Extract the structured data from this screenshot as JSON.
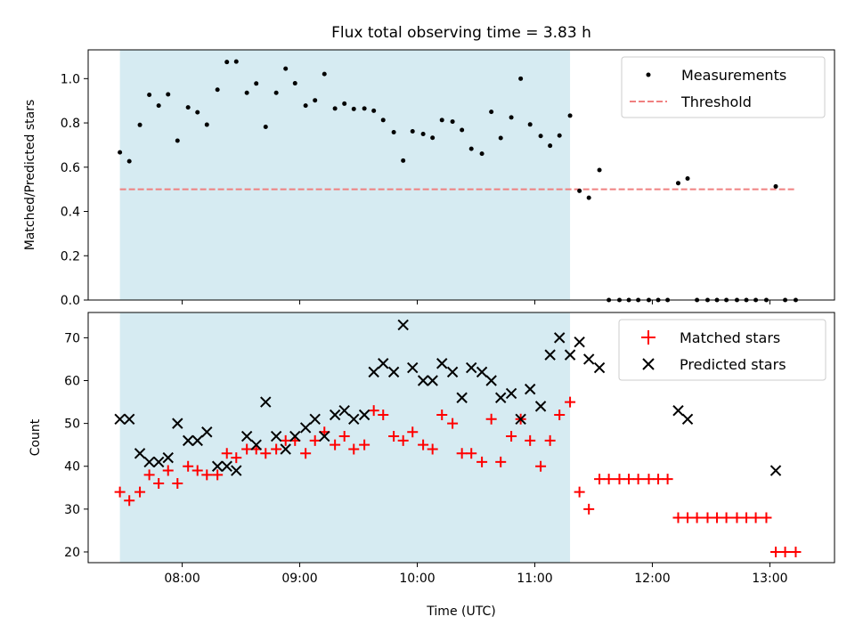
{
  "chart_data": [
    {
      "type": "scatter",
      "title": "Flux total observing time = 3.83 h",
      "xlabel": "",
      "ylabel": "Matched/Predicted stars",
      "x_unit": "hours UTC",
      "xlim": [
        7.2,
        13.55
      ],
      "ylim": [
        0.0,
        1.13
      ],
      "yticks": [
        0.0,
        0.2,
        0.4,
        0.6,
        0.8,
        1.0
      ],
      "ytick_labels": [
        "0.0",
        "0.2",
        "0.4",
        "0.6",
        "0.8",
        "1.0"
      ],
      "shaded_span": {
        "from": 7.47,
        "to": 11.3,
        "color": "#add8e6"
      },
      "legend_position": "top-right",
      "series": [
        {
          "name": "Measurements",
          "style": "dot",
          "color": "#000000",
          "points": [
            [
              7.47,
              0.667
            ],
            [
              7.55,
              0.627
            ],
            [
              7.64,
              0.791
            ],
            [
              7.72,
              0.927
            ],
            [
              7.8,
              0.878
            ],
            [
              7.88,
              0.929
            ],
            [
              7.96,
              0.72
            ],
            [
              8.05,
              0.87
            ],
            [
              8.13,
              0.848
            ],
            [
              8.21,
              0.792
            ],
            [
              8.3,
              0.95
            ],
            [
              8.38,
              1.075
            ],
            [
              8.46,
              1.077
            ],
            [
              8.55,
              0.936
            ],
            [
              8.63,
              0.978
            ],
            [
              8.71,
              0.782
            ],
            [
              8.8,
              0.936
            ],
            [
              8.88,
              1.045
            ],
            [
              8.96,
              0.979
            ],
            [
              9.05,
              0.878
            ],
            [
              9.13,
              0.902
            ],
            [
              9.21,
              1.021
            ],
            [
              9.3,
              0.865
            ],
            [
              9.38,
              0.887
            ],
            [
              9.46,
              0.863
            ],
            [
              9.55,
              0.865
            ],
            [
              9.63,
              0.855
            ],
            [
              9.71,
              0.813
            ],
            [
              9.8,
              0.758
            ],
            [
              9.88,
              0.63
            ],
            [
              9.96,
              0.762
            ],
            [
              10.05,
              0.75
            ],
            [
              10.13,
              0.733
            ],
            [
              10.21,
              0.813
            ],
            [
              10.3,
              0.806
            ],
            [
              10.38,
              0.768
            ],
            [
              10.46,
              0.683
            ],
            [
              10.55,
              0.661
            ],
            [
              10.63,
              0.85
            ],
            [
              10.71,
              0.732
            ],
            [
              10.8,
              0.825
            ],
            [
              10.88,
              1.0
            ],
            [
              10.96,
              0.793
            ],
            [
              11.05,
              0.741
            ],
            [
              11.13,
              0.697
            ],
            [
              11.21,
              0.743
            ],
            [
              11.3,
              0.833
            ],
            [
              11.38,
              0.493
            ],
            [
              11.46,
              0.462
            ],
            [
              11.55,
              0.587
            ],
            [
              11.63,
              0.0
            ],
            [
              11.72,
              0.0
            ],
            [
              11.8,
              0.0
            ],
            [
              11.88,
              0.0
            ],
            [
              11.97,
              0.0
            ],
            [
              12.05,
              0.0
            ],
            [
              12.13,
              0.0
            ],
            [
              12.22,
              0.528
            ],
            [
              12.3,
              0.549
            ],
            [
              12.38,
              0.0
            ],
            [
              12.47,
              0.0
            ],
            [
              12.55,
              0.0
            ],
            [
              12.63,
              0.0
            ],
            [
              12.72,
              0.0
            ],
            [
              12.8,
              0.0
            ],
            [
              12.88,
              0.0
            ],
            [
              12.97,
              0.0
            ],
            [
              13.05,
              0.513
            ],
            [
              13.13,
              0.0
            ],
            [
              13.22,
              0.0
            ]
          ]
        },
        {
          "name": "Threshold",
          "style": "dashed-line",
          "color": "#f08080",
          "points": [
            [
              7.47,
              0.5
            ],
            [
              13.22,
              0.5
            ]
          ]
        }
      ]
    },
    {
      "type": "scatter",
      "title": "",
      "xlabel": "Time (UTC)",
      "ylabel": "Count",
      "x_unit": "hours UTC",
      "xlim": [
        7.2,
        13.55
      ],
      "ylim": [
        17.5,
        75.9
      ],
      "xticks": [
        8,
        9,
        10,
        11,
        12,
        13
      ],
      "xtick_labels": [
        "08:00",
        "09:00",
        "10:00",
        "11:00",
        "12:00",
        "13:00"
      ],
      "yticks": [
        20,
        30,
        40,
        50,
        60,
        70
      ],
      "ytick_labels": [
        "20",
        "30",
        "40",
        "50",
        "60",
        "70"
      ],
      "shaded_span": {
        "from": 7.47,
        "to": 11.3,
        "color": "#add8e6"
      },
      "legend_position": "top-right",
      "series": [
        {
          "name": "Matched stars",
          "style": "plus",
          "color": "#ff0000",
          "points": [
            [
              7.47,
              34
            ],
            [
              7.55,
              32
            ],
            [
              7.64,
              34
            ],
            [
              7.72,
              38
            ],
            [
              7.8,
              36
            ],
            [
              7.88,
              39
            ],
            [
              7.96,
              36
            ],
            [
              8.05,
              40
            ],
            [
              8.13,
              39
            ],
            [
              8.21,
              38
            ],
            [
              8.3,
              38
            ],
            [
              8.38,
              43
            ],
            [
              8.46,
              42
            ],
            [
              8.55,
              44
            ],
            [
              8.63,
              44
            ],
            [
              8.71,
              43
            ],
            [
              8.8,
              44
            ],
            [
              8.88,
              46
            ],
            [
              8.96,
              46
            ],
            [
              9.05,
              43
            ],
            [
              9.13,
              46
            ],
            [
              9.21,
              48
            ],
            [
              9.3,
              45
            ],
            [
              9.38,
              47
            ],
            [
              9.46,
              44
            ],
            [
              9.55,
              45
            ],
            [
              9.63,
              53
            ],
            [
              9.71,
              52
            ],
            [
              9.8,
              47
            ],
            [
              9.88,
              46
            ],
            [
              9.96,
              48
            ],
            [
              10.05,
              45
            ],
            [
              10.13,
              44
            ],
            [
              10.21,
              52
            ],
            [
              10.3,
              50
            ],
            [
              10.38,
              43
            ],
            [
              10.46,
              43
            ],
            [
              10.55,
              41
            ],
            [
              10.63,
              51
            ],
            [
              10.71,
              41
            ],
            [
              10.8,
              47
            ],
            [
              10.88,
              51
            ],
            [
              10.96,
              46
            ],
            [
              11.05,
              40
            ],
            [
              11.13,
              46
            ],
            [
              11.21,
              52
            ],
            [
              11.3,
              55
            ],
            [
              11.38,
              34
            ],
            [
              11.46,
              30
            ],
            [
              11.55,
              37
            ],
            [
              11.63,
              37
            ],
            [
              11.72,
              37
            ],
            [
              11.8,
              37
            ],
            [
              11.88,
              37
            ],
            [
              11.97,
              37
            ],
            [
              12.05,
              37
            ],
            [
              12.13,
              37
            ],
            [
              12.22,
              28
            ],
            [
              12.3,
              28
            ],
            [
              12.38,
              28
            ],
            [
              12.47,
              28
            ],
            [
              12.55,
              28
            ],
            [
              12.63,
              28
            ],
            [
              12.72,
              28
            ],
            [
              12.8,
              28
            ],
            [
              12.88,
              28
            ],
            [
              12.97,
              28
            ],
            [
              13.05,
              20
            ],
            [
              13.13,
              20
            ],
            [
              13.22,
              20
            ]
          ]
        },
        {
          "name": "Predicted stars",
          "style": "x",
          "color": "#000000",
          "points": [
            [
              7.47,
              51
            ],
            [
              7.55,
              51
            ],
            [
              7.64,
              43
            ],
            [
              7.72,
              41
            ],
            [
              7.8,
              41
            ],
            [
              7.88,
              42
            ],
            [
              7.96,
              50
            ],
            [
              8.05,
              46
            ],
            [
              8.13,
              46
            ],
            [
              8.21,
              48
            ],
            [
              8.3,
              40
            ],
            [
              8.38,
              40
            ],
            [
              8.46,
              39
            ],
            [
              8.55,
              47
            ],
            [
              8.63,
              45
            ],
            [
              8.71,
              55
            ],
            [
              8.8,
              47
            ],
            [
              8.88,
              44
            ],
            [
              8.96,
              47
            ],
            [
              9.05,
              49
            ],
            [
              9.13,
              51
            ],
            [
              9.21,
              47
            ],
            [
              9.3,
              52
            ],
            [
              9.38,
              53
            ],
            [
              9.46,
              51
            ],
            [
              9.55,
              52
            ],
            [
              9.63,
              62
            ],
            [
              9.71,
              64
            ],
            [
              9.8,
              62
            ],
            [
              9.88,
              73
            ],
            [
              9.96,
              63
            ],
            [
              10.05,
              60
            ],
            [
              10.13,
              60
            ],
            [
              10.21,
              64
            ],
            [
              10.3,
              62
            ],
            [
              10.38,
              56
            ],
            [
              10.46,
              63
            ],
            [
              10.55,
              62
            ],
            [
              10.63,
              60
            ],
            [
              10.71,
              56
            ],
            [
              10.8,
              57
            ],
            [
              10.88,
              51
            ],
            [
              10.96,
              58
            ],
            [
              11.05,
              54
            ],
            [
              11.13,
              66
            ],
            [
              11.21,
              70
            ],
            [
              11.3,
              66
            ],
            [
              11.38,
              69
            ],
            [
              11.46,
              65
            ],
            [
              11.55,
              63
            ],
            [
              12.22,
              53
            ],
            [
              12.3,
              51
            ],
            [
              13.05,
              39
            ]
          ]
        }
      ]
    }
  ]
}
